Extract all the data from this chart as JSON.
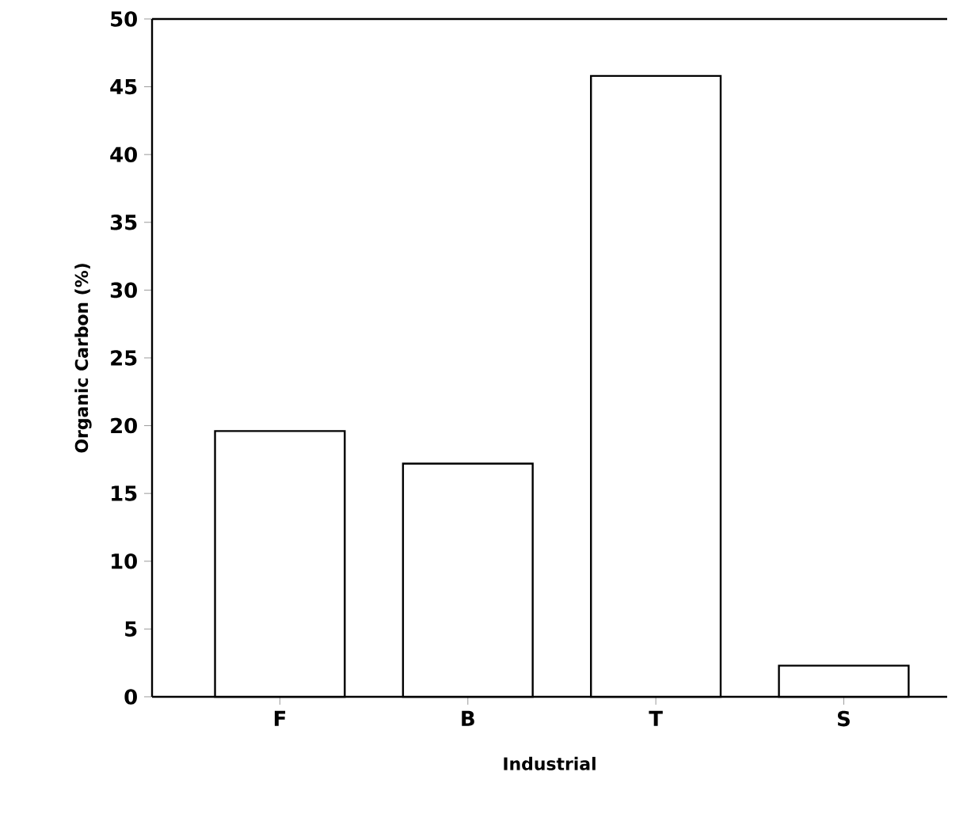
{
  "chart_data": {
    "type": "bar",
    "xlabel": "Industrial",
    "ylabel": "Organic Carbon (%)",
    "categories": [
      "F",
      "B",
      "T",
      "S"
    ],
    "values": [
      19.6,
      17.2,
      45.8,
      2.3
    ],
    "colors": [
      "#000000",
      "#000000",
      "#000000",
      "#000000"
    ],
    "ylim": [
      0,
      50
    ],
    "yticks": [
      0,
      5,
      10,
      15,
      20,
      25,
      30,
      35,
      40,
      45,
      50
    ]
  }
}
